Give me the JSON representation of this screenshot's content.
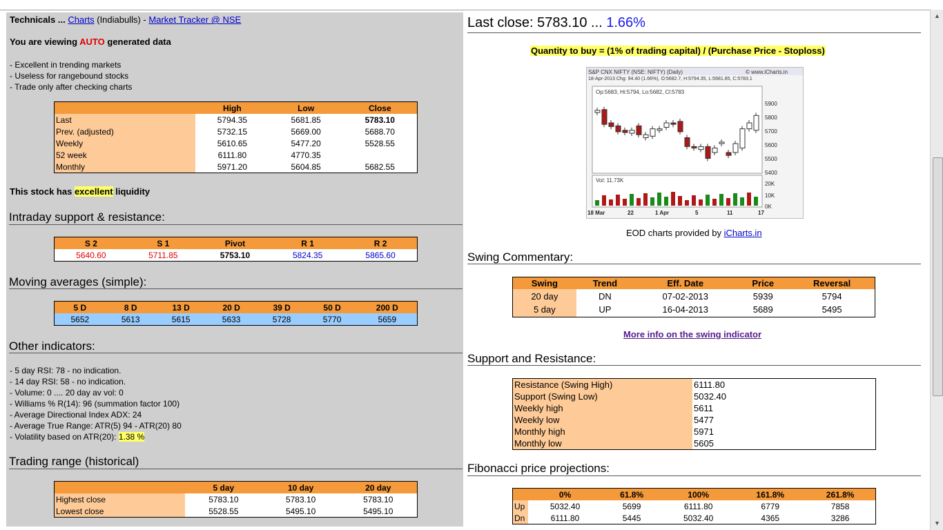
{
  "left": {
    "title_prefix": "Technicals ...",
    "charts_link": "Charts",
    "broker": "(Indiabulls) -",
    "tracker_link": "Market Tracker @ NSE",
    "viewing_pre": "You are viewing",
    "viewing_auto": "AUTO",
    "viewing_post": "generated data",
    "notes": [
      "- Excellent in trending markets",
      "- Useless for rangebound stocks",
      "- Trade only after checking charts"
    ],
    "hlc": {
      "headers": [
        "",
        "High",
        "Low",
        "Close"
      ],
      "rows": [
        {
          "label": "Last",
          "high": "5794.35",
          "low": "5681.85",
          "close": "5783.10"
        },
        {
          "label": "Prev. (adjusted)",
          "high": "5732.15",
          "low": "5669.00",
          "close": "5688.70"
        },
        {
          "label": "Weekly",
          "high": "5610.65",
          "low": "5477.20",
          "close": "5528.55"
        },
        {
          "label": "52 week",
          "high": "6111.80",
          "low": "4770.35",
          "close": ""
        },
        {
          "label": "Monthly",
          "high": "5971.20",
          "low": "5604.85",
          "close": "5682.55"
        }
      ]
    },
    "liquidity_pre": "This stock has",
    "liquidity_word": "excellent",
    "liquidity_post": "liquidity",
    "intraday_heading": "Intraday support & resistance:",
    "pivots": {
      "headers": [
        "S 2",
        "S 1",
        "Pivot",
        "R 1",
        "R 2"
      ],
      "values": [
        "5640.60",
        "5711.85",
        "5753.10",
        "5824.35",
        "5865.60"
      ]
    },
    "ma_heading": "Moving averages (simple):",
    "ma": {
      "headers": [
        "5 D",
        "8 D",
        "13 D",
        "20 D",
        "39 D",
        "50 D",
        "200 D"
      ],
      "values": [
        "5652",
        "5613",
        "5615",
        "5633",
        "5728",
        "5770",
        "5659"
      ]
    },
    "other_heading": "Other indicators:",
    "indicators": [
      "- 5 day RSI: 78 - no indication.",
      "- 14 day RSI: 58 - no indication.",
      "- Volume: 0 .... 20 day av vol: 0",
      "- Williams % R(14): 96 (summation factor 100)",
      "- Average Directional Index ADX: 24",
      "- Average True Range: ATR(5) 94 - ATR(20) 80"
    ],
    "volatility_pre": "- Volatility based on ATR(20):",
    "volatility_val": "1.38 %",
    "range_heading": "Trading range (historical)",
    "range": {
      "headers": [
        "",
        "5 day",
        "10 day",
        "20 day"
      ],
      "rows": [
        {
          "label": "Highest close",
          "v": [
            "5783.10",
            "5783.10",
            "5783.10"
          ]
        },
        {
          "label": "Lowest close",
          "v": [
            "5528.55",
            "5495.10",
            "5495.10"
          ]
        }
      ]
    }
  },
  "right": {
    "last_close_label": "Last close: 5783.10 ...",
    "last_close_pct": "1.66%",
    "qty_formula": "Quantity to buy = (1% of trading capital) / (Purchase Price - Stoploss)",
    "chart": {
      "title": "S&P CNX NIFTY (NSE: NIFTY) (Daily)",
      "site": "© www.iCharts.in",
      "subtitle": "18-Apr-2013 Chg: 94.40 (1.66%), O:5682.7, H:5794.35, L:5681.85, C:5783.1",
      "ohlc": "Op:5683, Hi:5794, Lo:5682, Cl:5783",
      "vol_label": "Vol: 11.73K",
      "price_ticks": [
        "5900",
        "5800",
        "5700",
        "5600",
        "5500",
        "5400"
      ],
      "vol_ticks": [
        "20K",
        "10K",
        "0K"
      ],
      "x_labels": [
        "18 Mar",
        "22",
        "1 Apr",
        "5",
        "11",
        "17"
      ]
    },
    "eod_text": "EOD charts provided by",
    "eod_link": "iCharts.in",
    "swing_heading": "Swing Commentary:",
    "swing": {
      "headers": [
        "Swing",
        "Trend",
        "Eff. Date",
        "Price",
        "Reversal"
      ],
      "rows": [
        {
          "swing": "20 day",
          "trend": "DN",
          "date": "07-02-2013",
          "price": "5939",
          "rev": "5794"
        },
        {
          "swing": "5 day",
          "trend": "UP",
          "date": "16-04-2013",
          "price": "5689",
          "rev": "5495"
        }
      ]
    },
    "swing_link": "More info on the swing indicator",
    "sr_heading": "Support and Resistance:",
    "sr": [
      {
        "label": "Resistance (Swing High)",
        "value": "6111.80"
      },
      {
        "label": "Support (Swing Low)",
        "value": "5032.40"
      },
      {
        "label": "Weekly high",
        "value": "5611"
      },
      {
        "label": "Weekly low",
        "value": "5477"
      },
      {
        "label": "Monthly high",
        "value": "5971"
      },
      {
        "label": "Monthly low",
        "value": "5605"
      }
    ],
    "fib_heading": "Fibonacci price projections:",
    "fib": {
      "headers": [
        "",
        "0%",
        "61.8%",
        "100%",
        "161.8%",
        "261.8%"
      ],
      "rows": [
        {
          "label": "Up",
          "v": [
            "5032.40",
            "5699",
            "6111.80",
            "6779",
            "7858"
          ]
        },
        {
          "label": "Dn",
          "v": [
            "6111.80",
            "5445",
            "5032.40",
            "4365",
            "3286"
          ]
        }
      ]
    }
  }
}
